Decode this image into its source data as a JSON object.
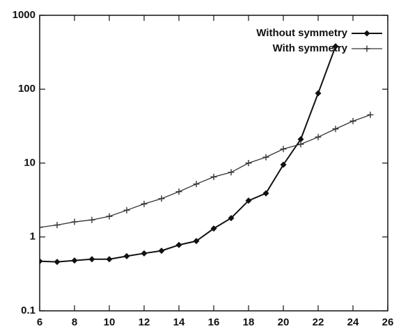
{
  "chart_data": {
    "type": "line",
    "x": [
      6,
      7,
      8,
      9,
      10,
      11,
      12,
      13,
      14,
      15,
      16,
      17,
      18,
      19,
      20,
      21,
      22,
      23,
      24,
      25
    ],
    "series": [
      {
        "name": "Without symmetry",
        "color": "#111111",
        "marker": "diamond",
        "values": [
          0.47,
          0.46,
          0.48,
          0.5,
          0.5,
          0.55,
          0.6,
          0.65,
          0.78,
          0.88,
          1.3,
          1.8,
          3.1,
          3.9,
          9.5,
          21,
          88,
          380,
          null,
          null
        ]
      },
      {
        "name": "With symmetry",
        "color": "#333333",
        "marker": "plus",
        "values": [
          1.35,
          1.45,
          1.6,
          1.7,
          1.9,
          2.3,
          2.8,
          3.3,
          4.1,
          5.2,
          6.5,
          7.5,
          10,
          12,
          15.5,
          18,
          22.5,
          29,
          37,
          45
        ]
      }
    ],
    "xlim": [
      6,
      26
    ],
    "xticks": [
      6,
      8,
      10,
      12,
      14,
      16,
      18,
      20,
      22,
      24,
      26
    ],
    "ylim": [
      0.1,
      1000
    ],
    "yticks": [
      0.1,
      1,
      10,
      100,
      1000
    ],
    "log_y": true,
    "grid": false,
    "legend": "upper right"
  }
}
